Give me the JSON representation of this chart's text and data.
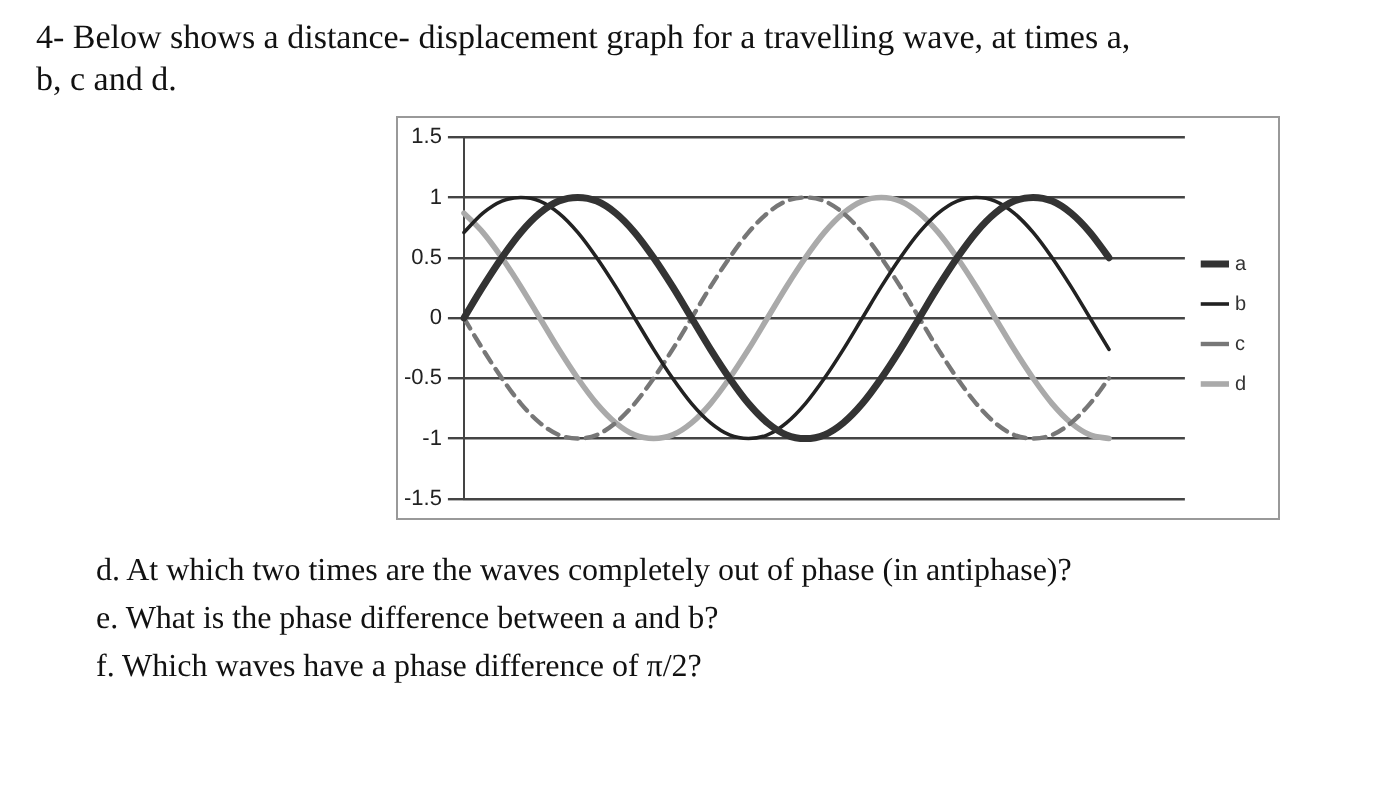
{
  "chart_data": {
    "type": "line",
    "title": "4- Below shows a distance- displacement graph for a travelling wave, at times a, b, c and d.",
    "annotations": [
      "d. At which two times are the waves completely out of phase (in antiphase)?",
      "e. What is the phase difference between a and b?",
      "f. Which waves have a phase difference of π/2?"
    ],
    "categories": [
      null,
      null,
      null,
      null,
      null,
      null,
      null,
      null,
      null,
      null,
      null,
      null,
      null,
      null,
      null,
      null,
      null,
      null,
      null,
      null,
      null,
      null,
      null,
      null,
      null,
      null,
      null,
      null,
      null,
      null,
      null,
      null,
      null,
      null,
      null,
      null,
      null,
      null,
      null
    ],
    "series": [
      {
        "name": "a",
        "color": "#333333",
        "line_style": "solid",
        "values": [
          0,
          0.26,
          0.5,
          0.71,
          0.87,
          0.97,
          1,
          0.97,
          0.87,
          0.71,
          0.5,
          0.26,
          0,
          -0.26,
          -0.5,
          -0.71,
          -0.87,
          -0.97,
          -1,
          -0.97,
          -0.87,
          -0.71,
          -0.5,
          -0.26,
          0,
          0.26,
          0.5,
          0.71,
          0.87,
          0.97,
          1,
          0.97,
          0.87,
          0.71,
          0.5,
          null,
          null,
          null,
          null
        ]
      },
      {
        "name": "b",
        "color": "#222222",
        "line_style": "solid",
        "values": [
          0.71,
          0.87,
          0.97,
          1,
          0.97,
          0.87,
          0.71,
          0.5,
          0.26,
          0,
          -0.26,
          -0.5,
          -0.71,
          -0.87,
          -0.97,
          -1,
          -0.97,
          -0.87,
          -0.71,
          -0.5,
          -0.26,
          0,
          0.26,
          0.5,
          0.71,
          0.87,
          0.97,
          1,
          0.97,
          0.87,
          0.71,
          0.5,
          0.26,
          0,
          -0.26,
          null,
          null,
          null,
          null
        ]
      },
      {
        "name": "c",
        "color": "#777777",
        "line_style": "dashed",
        "values": [
          0,
          -0.26,
          -0.5,
          -0.71,
          -0.87,
          -0.97,
          -1,
          -0.97,
          -0.87,
          -0.71,
          -0.5,
          -0.26,
          0,
          0.26,
          0.5,
          0.71,
          0.87,
          0.97,
          1,
          0.97,
          0.87,
          0.71,
          0.5,
          0.26,
          0,
          -0.26,
          -0.5,
          -0.71,
          -0.87,
          -0.97,
          -1,
          -0.97,
          -0.87,
          -0.71,
          -0.5,
          null,
          null,
          null,
          null
        ]
      },
      {
        "name": "d",
        "color": "#aaaaaa",
        "line_style": "solid",
        "values": [
          0.87,
          0.71,
          0.5,
          0.26,
          0,
          -0.26,
          -0.5,
          -0.71,
          -0.87,
          -0.97,
          -1,
          -0.97,
          -0.87,
          -0.71,
          -0.5,
          -0.26,
          0,
          0.26,
          0.5,
          0.71,
          0.87,
          0.97,
          1,
          0.97,
          0.87,
          0.71,
          0.5,
          0.26,
          0,
          -0.26,
          -0.5,
          -0.71,
          -0.87,
          -0.97,
          -1,
          null,
          null,
          null,
          null
        ]
      }
    ],
    "ylim": [
      -1.5,
      1.5
    ],
    "yticks": [
      -1.5,
      -1,
      -0.5,
      0,
      0.5,
      1,
      1.5
    ],
    "grid": "y",
    "legend": "right",
    "tick_labels": "y",
    "marker": "none"
  }
}
